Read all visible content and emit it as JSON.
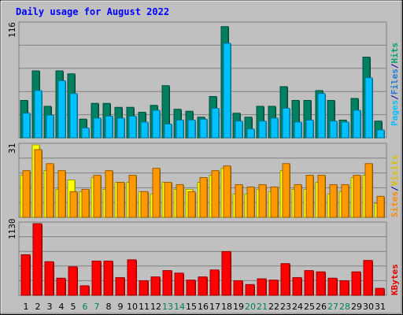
{
  "chart_data": [
    {
      "type": "bar",
      "panel": "top",
      "title": "Daily usage for August 2022",
      "ymax_label": "116",
      "ylim": [
        0,
        116
      ],
      "categories": [
        "1",
        "2",
        "3",
        "4",
        "5",
        "6",
        "7",
        "8",
        "9",
        "10",
        "11",
        "12",
        "13",
        "14",
        "15",
        "16",
        "17",
        "18",
        "19",
        "20",
        "21",
        "22",
        "23",
        "24",
        "25",
        "26",
        "27",
        "28",
        "29",
        "30",
        "31"
      ],
      "series": [
        {
          "name": "Hits",
          "color": "#008060",
          "values": [
            38,
            68,
            32,
            68,
            65,
            19,
            35,
            35,
            31,
            31,
            26,
            33,
            53,
            29,
            27,
            21,
            42,
            113,
            25,
            21,
            32,
            32,
            52,
            38,
            38,
            48,
            38,
            18,
            40,
            82,
            17
          ]
        },
        {
          "name": "Pages",
          "color": "#00C0FF",
          "values": [
            25,
            48,
            23,
            58,
            45,
            10,
            20,
            22,
            20,
            22,
            16,
            28,
            14,
            18,
            18,
            19,
            30,
            96,
            17,
            9,
            17,
            20,
            30,
            16,
            18,
            45,
            17,
            16,
            28,
            61,
            8
          ]
        }
      ],
      "legend": [
        {
          "text": "Pages",
          "color": "#00C0FF"
        },
        {
          "text": "/",
          "color": "#0000AA"
        },
        {
          "text": "Files",
          "color": "#1E7CD8"
        },
        {
          "text": "/",
          "color": "#0000AA"
        },
        {
          "text": "Hits",
          "color": "#00A070"
        }
      ]
    },
    {
      "type": "bar",
      "panel": "middle",
      "ymax_label": "31",
      "ylim": [
        0,
        31
      ],
      "categories": [
        "1",
        "2",
        "3",
        "4",
        "5",
        "6",
        "7",
        "8",
        "9",
        "10",
        "11",
        "12",
        "13",
        "14",
        "15",
        "16",
        "17",
        "18",
        "19",
        "20",
        "21",
        "22",
        "23",
        "24",
        "25",
        "26",
        "27",
        "28",
        "29",
        "30",
        "31"
      ],
      "series": [
        {
          "name": "Visits",
          "color": "#FFFF00",
          "values": [
            18,
            31,
            20,
            12,
            16,
            11,
            17,
            12,
            15,
            15,
            11,
            10,
            15,
            12,
            12,
            15,
            18,
            21,
            10,
            10,
            12,
            11,
            20,
            12,
            12,
            15,
            10,
            11,
            17,
            18,
            6
          ]
        },
        {
          "name": "Sites",
          "color": "#FF9900",
          "values": [
            20,
            29,
            23,
            20,
            11,
            12,
            18,
            20,
            15,
            18,
            11,
            21,
            15,
            14,
            11,
            17,
            20,
            22,
            14,
            13,
            14,
            13,
            23,
            14,
            18,
            18,
            14,
            14,
            18,
            23,
            9
          ]
        }
      ],
      "legend": [
        {
          "text": "Sites",
          "color": "#FF8800"
        },
        {
          "text": "/",
          "color": "#0000AA"
        },
        {
          "text": "Visits",
          "color": "#D8C000"
        }
      ]
    },
    {
      "type": "bar",
      "panel": "bottom",
      "ymax_label": "1130",
      "ylim": [
        0,
        1130
      ],
      "categories": [
        "1",
        "2",
        "3",
        "4",
        "5",
        "6",
        "7",
        "8",
        "9",
        "10",
        "11",
        "12",
        "13",
        "14",
        "15",
        "16",
        "17",
        "18",
        "19",
        "20",
        "21",
        "22",
        "23",
        "24",
        "25",
        "26",
        "27",
        "28",
        "29",
        "30",
        "31"
      ],
      "series": [
        {
          "name": "KBytes",
          "color": "#FF0000",
          "values": [
            640,
            1130,
            530,
            270,
            450,
            150,
            540,
            540,
            280,
            560,
            230,
            290,
            390,
            350,
            240,
            290,
            400,
            690,
            230,
            170,
            260,
            240,
            500,
            280,
            390,
            370,
            270,
            230,
            370,
            550,
            110
          ]
        }
      ],
      "legend": [
        {
          "text": "KBytes",
          "color": "#E00000"
        }
      ]
    }
  ],
  "x_labels": [
    {
      "text": "1",
      "color": "#000000"
    },
    {
      "text": "2",
      "color": "#000000"
    },
    {
      "text": "3",
      "color": "#000000"
    },
    {
      "text": "4",
      "color": "#000000"
    },
    {
      "text": "5",
      "color": "#000000"
    },
    {
      "text": "6",
      "color": "#00805A"
    },
    {
      "text": "7",
      "color": "#00805A"
    },
    {
      "text": "8",
      "color": "#000000"
    },
    {
      "text": "9",
      "color": "#000000"
    },
    {
      "text": "10",
      "color": "#000000"
    },
    {
      "text": "11",
      "color": "#000000"
    },
    {
      "text": "12",
      "color": "#000000"
    },
    {
      "text": "13",
      "color": "#00805A"
    },
    {
      "text": "14",
      "color": "#00805A"
    },
    {
      "text": "15",
      "color": "#000000"
    },
    {
      "text": "16",
      "color": "#000000"
    },
    {
      "text": "17",
      "color": "#000000"
    },
    {
      "text": "18",
      "color": "#000000"
    },
    {
      "text": "19",
      "color": "#000000"
    },
    {
      "text": "20",
      "color": "#00805A"
    },
    {
      "text": "21",
      "color": "#00805A"
    },
    {
      "text": "22",
      "color": "#000000"
    },
    {
      "text": "23",
      "color": "#000000"
    },
    {
      "text": "24",
      "color": "#000000"
    },
    {
      "text": "25",
      "color": "#000000"
    },
    {
      "text": "26",
      "color": "#000000"
    },
    {
      "text": "27",
      "color": "#00805A"
    },
    {
      "text": "28",
      "color": "#00805A"
    },
    {
      "text": "29",
      "color": "#000000"
    },
    {
      "text": "30",
      "color": "#000000"
    },
    {
      "text": "31",
      "color": "#000000"
    }
  ],
  "colors": {
    "background": "#C0C0C0",
    "title": "#0000FF",
    "gridline": "#808080"
  }
}
